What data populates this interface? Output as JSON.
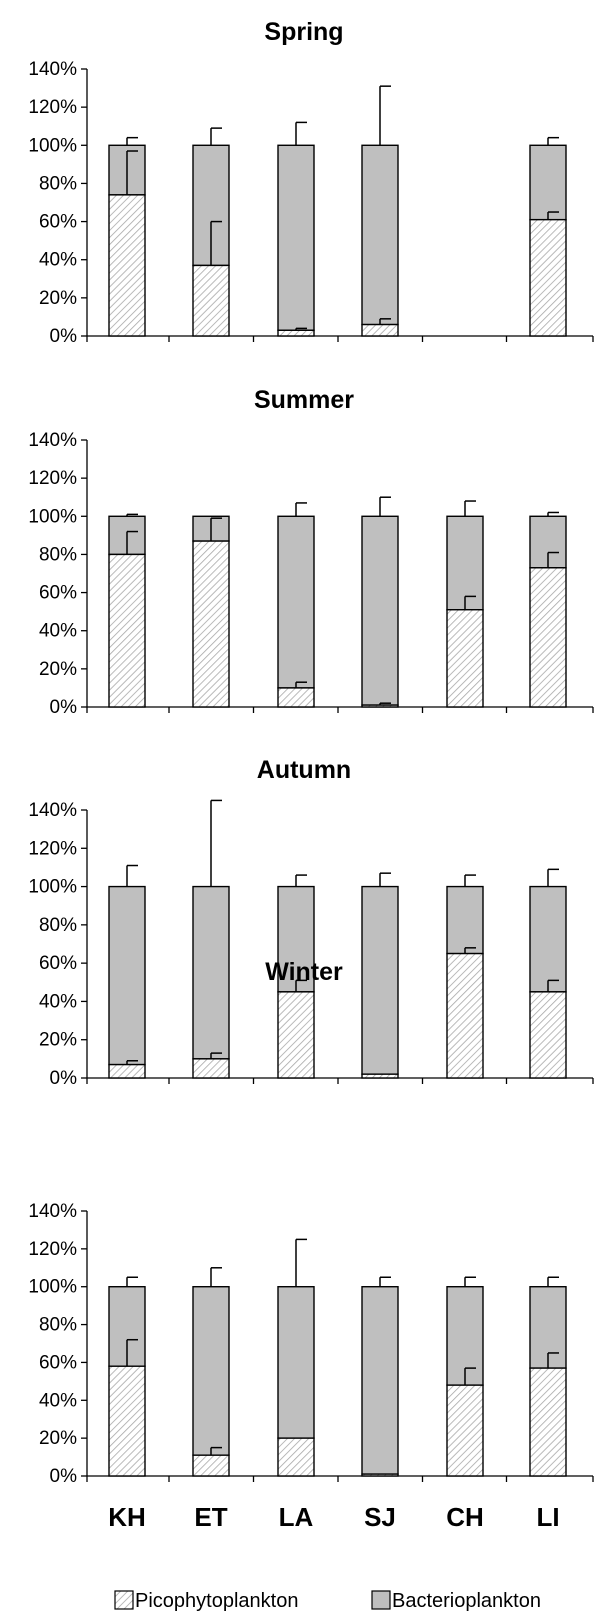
{
  "chart_data": [
    {
      "type": "bar",
      "stacked": true,
      "title": "Spring",
      "categories": [
        "KH",
        "ET",
        "LA",
        "SJ",
        "CH",
        "LI"
      ],
      "ylim": [
        0,
        140
      ],
      "yticks": [
        "0%",
        "20%",
        "40%",
        "60%",
        "80%",
        "100%",
        "120%",
        "140%"
      ],
      "series": [
        {
          "name": "Picophytoplankton",
          "values": [
            74,
            37,
            3,
            6,
            null,
            61
          ],
          "error": [
            97,
            60,
            4,
            9,
            null,
            65
          ]
        },
        {
          "name": "Bacterioplankton",
          "values": [
            26,
            63,
            97,
            94,
            null,
            39
          ],
          "error": [
            104,
            109,
            112,
            131,
            null,
            104
          ]
        }
      ]
    },
    {
      "type": "bar",
      "stacked": true,
      "title": "Summer",
      "categories": [
        "KH",
        "ET",
        "LA",
        "SJ",
        "CH",
        "LI"
      ],
      "ylim": [
        0,
        140
      ],
      "yticks": [
        "0%",
        "20%",
        "40%",
        "60%",
        "80%",
        "100%",
        "120%",
        "140%"
      ],
      "series": [
        {
          "name": "Picophytoplankton",
          "values": [
            80,
            87,
            10,
            1,
            51,
            73
          ],
          "error": [
            92,
            99,
            13,
            2,
            58,
            81
          ]
        },
        {
          "name": "Bacterioplankton",
          "values": [
            20,
            13,
            90,
            99,
            49,
            27
          ],
          "error": [
            101,
            100,
            107,
            110,
            108,
            102
          ]
        }
      ]
    },
    {
      "type": "bar",
      "stacked": true,
      "title": "Autumn",
      "categories": [
        "KH",
        "ET",
        "LA",
        "SJ",
        "CH",
        "LI"
      ],
      "ylim": [
        0,
        140
      ],
      "yticks": [
        "0%",
        "20%",
        "40%",
        "60%",
        "80%",
        "100%",
        "120%",
        "140%"
      ],
      "series": [
        {
          "name": "Picophytoplankton",
          "values": [
            7,
            10,
            45,
            2,
            65,
            45
          ],
          "error": [
            9,
            13,
            51,
            2,
            68,
            51
          ]
        },
        {
          "name": "Bacterioplankton",
          "values": [
            93,
            90,
            55,
            98,
            35,
            55
          ],
          "error": [
            111,
            145,
            106,
            107,
            106,
            109
          ]
        }
      ]
    },
    {
      "type": "bar",
      "stacked": true,
      "title": "Winter",
      "categories": [
        "KH",
        "ET",
        "LA",
        "SJ",
        "CH",
        "LI"
      ],
      "ylim": [
        0,
        140
      ],
      "yticks": [
        "0%",
        "20%",
        "40%",
        "60%",
        "80%",
        "100%",
        "120%",
        "140%"
      ],
      "series": [
        {
          "name": "Picophytoplankton",
          "values": [
            58,
            11,
            20,
            1,
            48,
            57
          ],
          "error": [
            72,
            15,
            20,
            1,
            57,
            65
          ]
        },
        {
          "name": "Bacterioplankton",
          "values": [
            42,
            89,
            80,
            99,
            52,
            43
          ],
          "error": [
            105,
            110,
            125,
            105,
            105,
            105
          ]
        }
      ]
    }
  ],
  "x_labels": [
    "KH",
    "ET",
    "LA",
    "SJ",
    "CH",
    "LI"
  ],
  "legend": [
    {
      "label": "Picophytoplankton",
      "pattern": "hatched"
    },
    {
      "label": "Bacterioplankton",
      "color": "#bfbfbf"
    }
  ],
  "colors": {
    "bacterioplankton": "#bfbfbf",
    "picophytoplankton_bg": "#ffffff",
    "hatch": "#a8a8a8",
    "outline": "#000000"
  }
}
